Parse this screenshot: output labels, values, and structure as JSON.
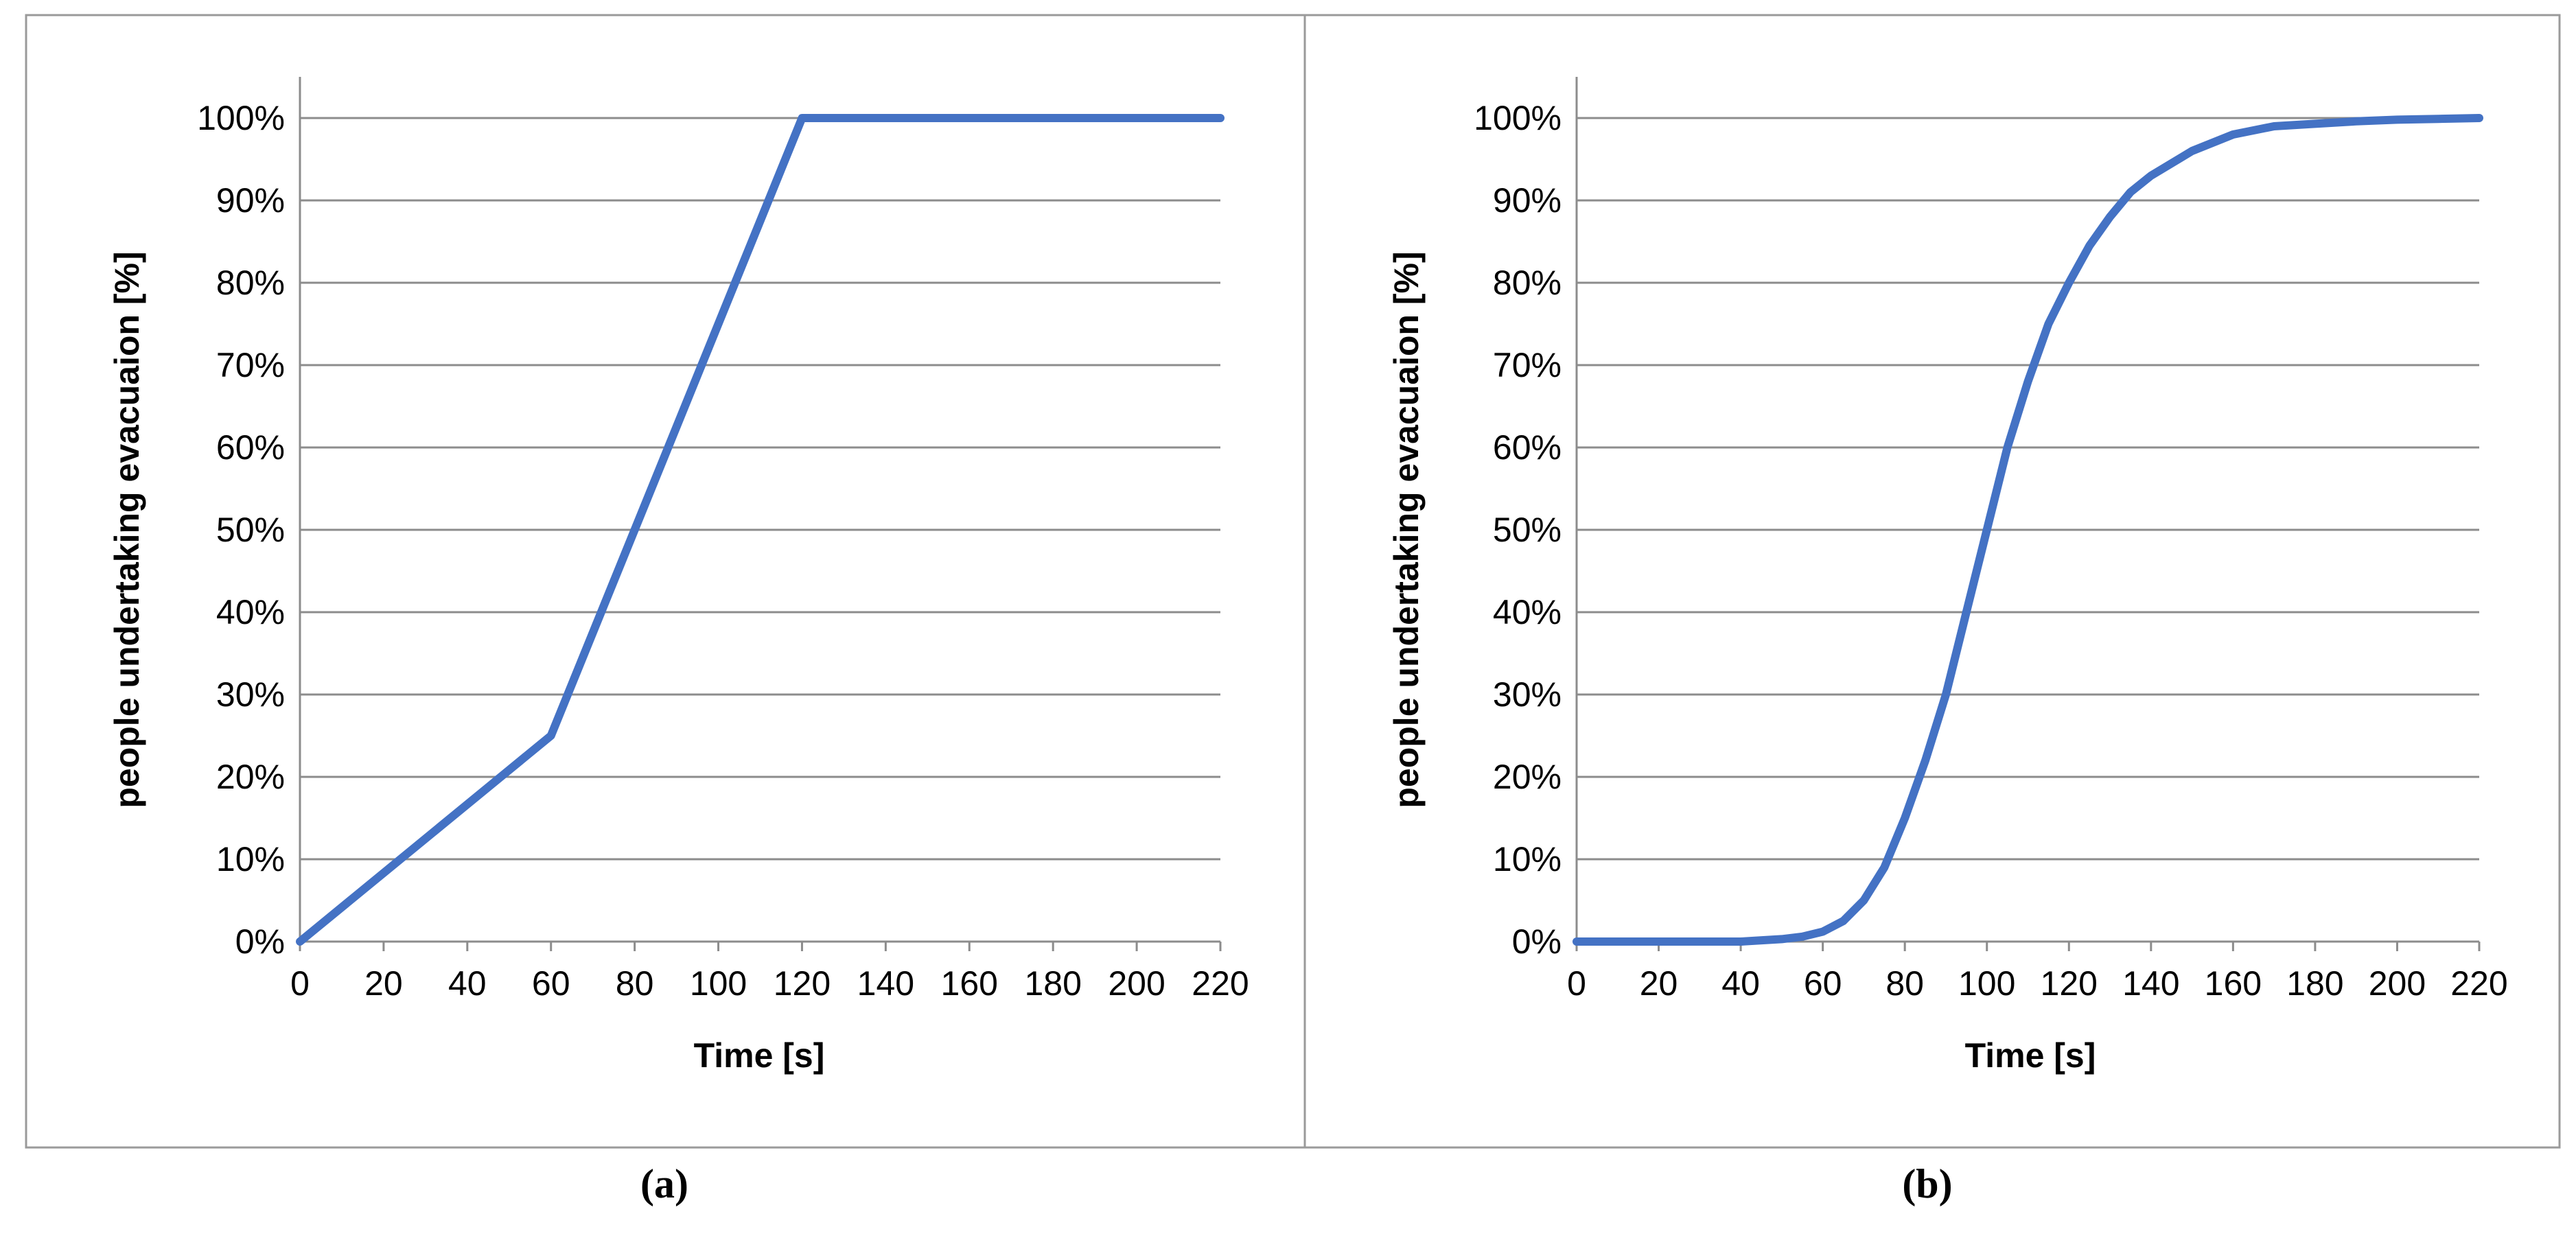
{
  "chart_data": [
    {
      "type": "line",
      "caption": "(a)",
      "xlabel": "Time [s]",
      "ylabel": "people undertaking evacuaion [%]",
      "xlim": [
        0,
        220
      ],
      "ylim": [
        0,
        100
      ],
      "x_ticks": [
        "0",
        "20",
        "40",
        "60",
        "80",
        "100",
        "120",
        "140",
        "160",
        "180",
        "200",
        "220"
      ],
      "y_ticks": [
        "0%",
        "10%",
        "20%",
        "30%",
        "40%",
        "50%",
        "60%",
        "70%",
        "80%",
        "90%",
        "100%"
      ],
      "grid": true,
      "series_color": "#4472C4",
      "series": [
        {
          "x": [
            0,
            60,
            120,
            220
          ],
          "y": [
            0,
            25,
            100,
            100
          ]
        }
      ]
    },
    {
      "type": "line",
      "caption": "(b)",
      "xlabel": "Time [s]",
      "ylabel": "people undertaking evacuaion [%]",
      "xlim": [
        0,
        220
      ],
      "ylim": [
        0,
        100
      ],
      "x_ticks": [
        "0",
        "20",
        "40",
        "60",
        "80",
        "100",
        "120",
        "140",
        "160",
        "180",
        "200",
        "220"
      ],
      "y_ticks": [
        "0%",
        "10%",
        "20%",
        "30%",
        "40%",
        "50%",
        "60%",
        "70%",
        "80%",
        "90%",
        "100%"
      ],
      "grid": true,
      "series_color": "#4472C4",
      "series": [
        {
          "x": [
            0,
            20,
            40,
            50,
            55,
            60,
            65,
            70,
            75,
            80,
            85,
            90,
            95,
            100,
            105,
            110,
            115,
            120,
            125,
            130,
            135,
            140,
            150,
            160,
            170,
            180,
            190,
            200,
            210,
            220
          ],
          "y": [
            0,
            0,
            0,
            0.3,
            0.6,
            1.2,
            2.5,
            5,
            9,
            15,
            22,
            30,
            40,
            50,
            60,
            68,
            75,
            80,
            84.5,
            88,
            91,
            93,
            96,
            98,
            99,
            99.3,
            99.6,
            99.8,
            99.9,
            100
          ]
        }
      ]
    }
  ]
}
